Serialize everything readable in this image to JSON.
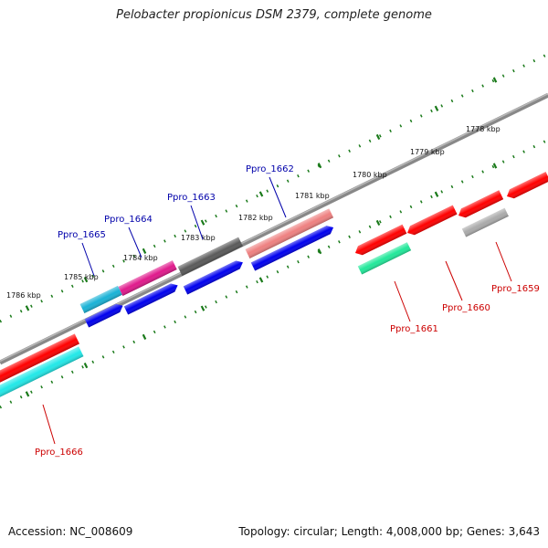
{
  "title": "Pelobacter propionicus DSM 2379, complete genome",
  "footer": {
    "accession": "Accession: NC_008609",
    "info": "Topology: circular; Length: 4,008,000 bp; Genes: 3,643"
  },
  "scale_labels": [
    "1778 kbp",
    "1779 kbp",
    "1780 kbp",
    "1781 kbp",
    "1782 kbp",
    "1783 kbp",
    "1784 kbp",
    "1785 kbp",
    "1786 kbp"
  ],
  "colors": {
    "forward_label": "#0000aa",
    "reverse_label": "#cc0000",
    "backbone": "#888888",
    "tick": "#1a7a1a"
  },
  "genes_forward": [
    {
      "label": "Ppro_1665",
      "color": "#19b2d6"
    },
    {
      "label": "Ppro_1664",
      "color": "#e0198c"
    },
    {
      "label": "Ppro_1663",
      "color": "#5a5a5a"
    },
    {
      "label": "Ppro_1662",
      "color": "#ee8080"
    }
  ],
  "genes_reverse": [
    {
      "label": "Ppro_1666",
      "color": "#ff0000"
    },
    {
      "label": "Ppro_1661",
      "color": "#ff0000"
    },
    {
      "label": "Ppro_1660",
      "color": "#ff0000"
    },
    {
      "label": "Ppro_1659",
      "color": "#ff0000"
    }
  ],
  "extra_features": [
    {
      "name": "cyan-feature",
      "color": "#22e8e8"
    },
    {
      "name": "green-feature",
      "color": "#22e89a"
    },
    {
      "name": "silver-feature",
      "color": "#aaaaaa"
    },
    {
      "name": "blue-feature",
      "color": "#0000ee"
    }
  ]
}
